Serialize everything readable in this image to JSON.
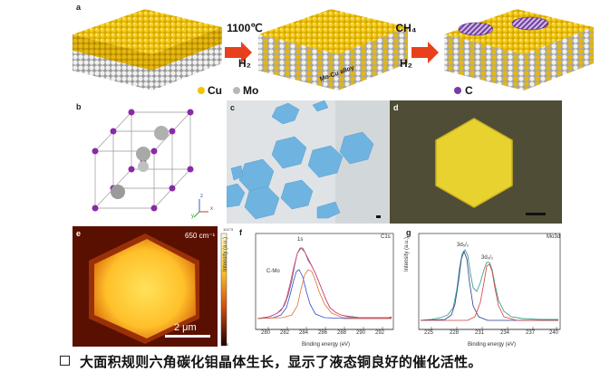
{
  "panels": {
    "a": {
      "label": "a",
      "step1_temp": "1100℃",
      "step1_gas": "H₂",
      "step2_gas_top": "CH₄",
      "step2_gas_bottom": "H₂",
      "alloy_label": "Mo-Cu alloy",
      "legend": [
        {
          "symbol": "Cu",
          "color": "#f2c500"
        },
        {
          "symbol": "Mo",
          "color": "#b8b8b8"
        },
        {
          "symbol": "C",
          "color": "#7a3aa3"
        }
      ]
    },
    "b": {
      "label": "b",
      "axes": [
        "z",
        "x",
        "y"
      ]
    },
    "c": {
      "label": "c"
    },
    "d": {
      "label": "d"
    },
    "e": {
      "label": "e",
      "wavenumber": "650 cm⁻¹",
      "scalebar": "2 μm",
      "colorbar_max": "10173",
      "colorbar_min": "0"
    },
    "f": {
      "label": "f",
      "title": "C1s",
      "peak_main": "1s",
      "peak_side": "C-Mo",
      "xlabel": "Binding energy (eV)",
      "ylabel": "Intensity (a.u.)",
      "xticks": [
        "280",
        "282",
        "284",
        "286",
        "288",
        "290",
        "292"
      ]
    },
    "g": {
      "label": "g",
      "title": "Mo3d",
      "peak1": "3d₅/₂",
      "peak2": "3d₃/₂",
      "xlabel": "Binding energy (eV)",
      "ylabel": "Intensity (a.u.)",
      "xticks": [
        "225",
        "228",
        "231",
        "234",
        "237",
        "240"
      ]
    }
  },
  "caption": "大面积规则六角碳化钼晶体生长，显示了液态铜良好的催化活性。"
}
